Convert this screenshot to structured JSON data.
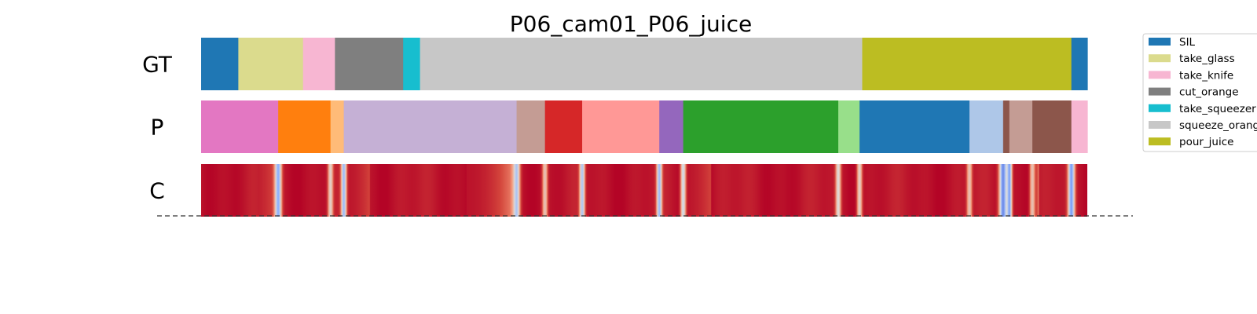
{
  "chart_data": {
    "type": "segmentation",
    "title": "P06_cam01_P06_juice",
    "frame_range": [
      0,
      1000
    ],
    "rows": [
      {
        "label": "GT",
        "segments": [
          {
            "start": 0,
            "end": 42,
            "color": "#1f77b4"
          },
          {
            "start": 42,
            "end": 115,
            "color": "#dbdb8d"
          },
          {
            "start": 115,
            "end": 151,
            "color": "#f7b6d2"
          },
          {
            "start": 151,
            "end": 228,
            "color": "#7f7f7f"
          },
          {
            "start": 228,
            "end": 247,
            "color": "#17becf"
          },
          {
            "start": 247,
            "end": 746,
            "color": "#c7c7c7"
          },
          {
            "start": 746,
            "end": 982,
            "color": "#bcbd22"
          },
          {
            "start": 982,
            "end": 1000,
            "color": "#1f77b4"
          }
        ]
      },
      {
        "label": "P",
        "segments": [
          {
            "start": 0,
            "end": 87,
            "color": "#e377c2"
          },
          {
            "start": 87,
            "end": 146,
            "color": "#ff7f0e"
          },
          {
            "start": 146,
            "end": 161,
            "color": "#ffbb78"
          },
          {
            "start": 161,
            "end": 356,
            "color": "#c5b0d5"
          },
          {
            "start": 356,
            "end": 388,
            "color": "#c49c94"
          },
          {
            "start": 388,
            "end": 430,
            "color": "#d62728"
          },
          {
            "start": 430,
            "end": 517,
            "color": "#ff9896"
          },
          {
            "start": 517,
            "end": 544,
            "color": "#9467bd"
          },
          {
            "start": 544,
            "end": 719,
            "color": "#2ca02c"
          },
          {
            "start": 719,
            "end": 743,
            "color": "#98df8a"
          },
          {
            "start": 743,
            "end": 867,
            "color": "#1f77b4"
          },
          {
            "start": 867,
            "end": 905,
            "color": "#aec7e8"
          },
          {
            "start": 905,
            "end": 912,
            "color": "#8c564b"
          },
          {
            "start": 912,
            "end": 938,
            "color": "#c49c94"
          },
          {
            "start": 938,
            "end": 982,
            "color": "#8c564b"
          },
          {
            "start": 982,
            "end": 1000,
            "color": "#f7b6d2"
          }
        ]
      },
      {
        "label": "C",
        "type": "confidence_heatmap",
        "colormap": "coolwarm",
        "base_value": 0.97,
        "dips": [
          {
            "at": 87,
            "width": 2.5,
            "min": 0.25
          },
          {
            "at": 146,
            "width": 2,
            "min": 0.55
          },
          {
            "at": 161,
            "width": 2,
            "min": 0.3
          },
          {
            "at": 356,
            "width": 2.5,
            "min": 0.35
          },
          {
            "at": 388,
            "width": 2,
            "min": 0.6
          },
          {
            "at": 430,
            "width": 2,
            "min": 0.35
          },
          {
            "at": 517,
            "width": 2,
            "min": 0.3
          },
          {
            "at": 544,
            "width": 2,
            "min": 0.45
          },
          {
            "at": 719,
            "width": 2,
            "min": 0.5
          },
          {
            "at": 743,
            "width": 2,
            "min": 0.55
          },
          {
            "at": 867,
            "width": 2,
            "min": 0.6
          },
          {
            "at": 905,
            "width": 3,
            "min": 0.15
          },
          {
            "at": 912,
            "width": 2,
            "min": 0.2
          },
          {
            "at": 938,
            "width": 2,
            "min": 0.6
          },
          {
            "at": 982,
            "width": 2.5,
            "min": 0.2
          }
        ],
        "soft_zones": [
          {
            "start": 48,
            "end": 87,
            "min": 0.85
          },
          {
            "start": 300,
            "end": 356,
            "min": 0.75
          },
          {
            "start": 161,
            "end": 190,
            "min": 0.88
          },
          {
            "start": 544,
            "end": 575,
            "min": 0.88
          },
          {
            "start": 938,
            "end": 945,
            "min": 0.8
          }
        ]
      }
    ],
    "legend": {
      "placement": "right",
      "entries": [
        {
          "name": "SIL",
          "color": "#1f77b4"
        },
        {
          "name": "take_glass",
          "color": "#dbdb8d"
        },
        {
          "name": "take_knife",
          "color": "#f7b6d2"
        },
        {
          "name": "cut_orange",
          "color": "#7f7f7f"
        },
        {
          "name": "take_squeezer",
          "color": "#17becf"
        },
        {
          "name": "squeeze_orange",
          "color": "#c7c7c7"
        },
        {
          "name": "pour_juice",
          "color": "#bcbd22"
        }
      ]
    }
  }
}
